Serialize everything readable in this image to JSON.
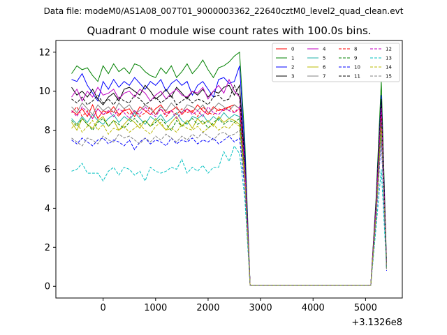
{
  "suptitle": "Data file: modeM0/AS1A08_007T01_9000003362_22640cztM0_level2_quad_clean.evt",
  "chart_data": {
    "type": "line",
    "title": "Quadrant 0 module wise count rates with 100.0s bins.",
    "xlabel": "",
    "ylabel": "",
    "x_offset_label": "+3.1326e8",
    "xlim": [
      -900,
      5700
    ],
    "ylim": [
      -0.6,
      12.6
    ],
    "xticks": [
      0,
      1000,
      2000,
      3000,
      4000,
      5000
    ],
    "yticks": [
      0,
      2,
      4,
      6,
      8,
      10,
      12
    ],
    "grid": false,
    "legend_position": "top-right",
    "x": [
      -600,
      -500,
      -400,
      -300,
      -200,
      -100,
      0,
      100,
      200,
      300,
      400,
      500,
      600,
      700,
      800,
      900,
      1000,
      1100,
      1200,
      1300,
      1400,
      1500,
      1600,
      1700,
      1800,
      1900,
      2000,
      2100,
      2200,
      2300,
      2400,
      2500,
      2600,
      2700,
      2800,
      2900,
      3000,
      3100,
      3200,
      3300,
      3400,
      3500,
      3600,
      3700,
      3800,
      3900,
      4000,
      4100,
      4200,
      4300,
      4400,
      4500,
      4600,
      4700,
      4800,
      4900,
      5000,
      5100,
      5200,
      5300,
      5400
    ],
    "series": [
      {
        "name": "0",
        "color": "#ff0000",
        "style": "solid",
        "values": [
          9.0,
          8.8,
          9.1,
          8.7,
          9.3,
          8.6,
          9.0,
          8.9,
          9.2,
          8.8,
          9.0,
          9.1,
          8.7,
          9.2,
          9.0,
          8.8,
          9.1,
          9.3,
          8.9,
          9.0,
          9.2,
          8.8,
          9.1,
          8.9,
          9.3,
          9.0,
          8.8,
          9.2,
          9.0,
          9.1,
          9.2,
          9.3,
          9.1,
          6.0,
          0.05,
          0.05,
          0.05,
          0.05,
          0.05,
          0.05,
          0.05,
          0.05,
          0.05,
          0.05,
          0.05,
          0.05,
          0.05,
          0.05,
          0.05,
          0.05,
          0.05,
          0.05,
          0.05,
          0.05,
          0.05,
          0.05,
          0.05,
          0.05,
          4.0,
          8.5,
          1.0
        ]
      },
      {
        "name": "1",
        "color": "#008000",
        "style": "solid",
        "values": [
          10.9,
          11.3,
          11.1,
          11.2,
          10.8,
          10.5,
          11.3,
          10.9,
          11.4,
          11.0,
          11.2,
          10.9,
          11.4,
          11.3,
          11.0,
          10.8,
          10.7,
          11.2,
          10.9,
          11.3,
          10.7,
          11.0,
          11.4,
          10.9,
          11.2,
          11.6,
          11.1,
          10.7,
          11.2,
          11.3,
          11.5,
          11.8,
          12.0,
          7.5,
          0.05,
          0.05,
          0.05,
          0.05,
          0.05,
          0.05,
          0.05,
          0.05,
          0.05,
          0.05,
          0.05,
          0.05,
          0.05,
          0.05,
          0.05,
          0.05,
          0.05,
          0.05,
          0.05,
          0.05,
          0.05,
          0.05,
          0.05,
          0.05,
          4.5,
          10.5,
          1.2
        ]
      },
      {
        "name": "2",
        "color": "#0000ff",
        "style": "solid",
        "values": [
          10.6,
          10.5,
          10.9,
          10.3,
          9.9,
          9.5,
          10.5,
          10.1,
          10.6,
          10.2,
          10.5,
          10.3,
          10.7,
          10.4,
          10.1,
          10.5,
          10.3,
          10.6,
          10.0,
          10.4,
          10.6,
          10.3,
          10.5,
          9.8,
          10.3,
          10.5,
          10.1,
          9.7,
          10.6,
          10.7,
          10.4,
          10.5,
          11.3,
          7.0,
          0.05,
          0.05,
          0.05,
          0.05,
          0.05,
          0.05,
          0.05,
          0.05,
          0.05,
          0.05,
          0.05,
          0.05,
          0.05,
          0.05,
          0.05,
          0.05,
          0.05,
          0.05,
          0.05,
          0.05,
          0.05,
          0.05,
          0.05,
          0.05,
          4.3,
          9.8,
          1.1
        ]
      },
      {
        "name": "3",
        "color": "#000000",
        "style": "solid",
        "values": [
          10.2,
          9.8,
          10.0,
          9.7,
          10.1,
          9.6,
          9.3,
          9.7,
          9.9,
          9.5,
          10.1,
          10.2,
          10.0,
          9.8,
          10.3,
          10.0,
          9.6,
          9.8,
          10.1,
          9.7,
          10.2,
          9.9,
          9.6,
          10.0,
          9.8,
          10.1,
          9.7,
          10.0,
          9.9,
          10.2,
          10.3,
          9.8,
          10.3,
          6.5,
          0.05,
          0.05,
          0.05,
          0.05,
          0.05,
          0.05,
          0.05,
          0.05,
          0.05,
          0.05,
          0.05,
          0.05,
          0.05,
          0.05,
          0.05,
          0.05,
          0.05,
          0.05,
          0.05,
          0.05,
          0.05,
          0.05,
          0.05,
          0.05,
          4.2,
          9.5,
          1.0
        ]
      },
      {
        "name": "4",
        "color": "#c000c0",
        "style": "solid",
        "values": [
          9.7,
          10.1,
          9.5,
          10.0,
          9.7,
          10.2,
          9.8,
          9.9,
          10.1,
          9.6,
          9.9,
          10.0,
          9.7,
          10.1,
          9.9,
          9.5,
          9.8,
          10.0,
          9.6,
          9.9,
          10.1,
          9.8,
          9.7,
          10.0,
          9.9,
          10.2,
          9.6,
          10.0,
          10.3,
          9.9,
          10.6,
          10.0,
          9.7,
          6.3,
          0.05,
          0.05,
          0.05,
          0.05,
          0.05,
          0.05,
          0.05,
          0.05,
          0.05,
          0.05,
          0.05,
          0.05,
          0.05,
          0.05,
          0.05,
          0.05,
          0.05,
          0.05,
          0.05,
          0.05,
          0.05,
          0.05,
          0.05,
          0.05,
          4.1,
          9.3,
          1.0
        ]
      },
      {
        "name": "5",
        "color": "#20b2aa",
        "style": "solid",
        "values": [
          8.6,
          8.3,
          8.7,
          8.4,
          8.8,
          8.5,
          8.3,
          8.6,
          8.8,
          8.4,
          8.7,
          8.5,
          8.9,
          8.6,
          8.3,
          8.7,
          8.5,
          8.8,
          8.4,
          8.6,
          8.9,
          8.5,
          8.3,
          8.7,
          8.6,
          8.8,
          8.4,
          8.7,
          8.5,
          8.9,
          8.6,
          8.8,
          8.7,
          5.8,
          0.05,
          0.05,
          0.05,
          0.05,
          0.05,
          0.05,
          0.05,
          0.05,
          0.05,
          0.05,
          0.05,
          0.05,
          0.05,
          0.05,
          0.05,
          0.05,
          0.05,
          0.05,
          0.05,
          0.05,
          0.05,
          0.05,
          0.05,
          0.05,
          3.8,
          8.7,
          0.9
        ]
      },
      {
        "name": "6",
        "color": "#b8b800",
        "style": "solid",
        "values": [
          8.4,
          8.0,
          8.6,
          8.3,
          8.1,
          8.5,
          8.7,
          8.2,
          8.5,
          8.0,
          8.3,
          8.6,
          8.4,
          8.1,
          8.5,
          8.2,
          8.6,
          8.3,
          8.0,
          8.4,
          8.7,
          8.2,
          8.5,
          8.1,
          8.6,
          8.3,
          8.5,
          8.2,
          8.7,
          8.4,
          8.6,
          8.5,
          8.3,
          5.6,
          0.05,
          0.05,
          0.05,
          0.05,
          0.05,
          0.05,
          0.05,
          0.05,
          0.05,
          0.05,
          0.05,
          0.05,
          0.05,
          0.05,
          0.05,
          0.05,
          0.05,
          0.05,
          0.05,
          0.05,
          0.05,
          0.05,
          0.05,
          0.05,
          3.7,
          8.4,
          0.9
        ]
      },
      {
        "name": "7",
        "color": "#808080",
        "style": "solid",
        "values": [
          9.2,
          8.9,
          9.4,
          9.1,
          8.8,
          9.3,
          9.0,
          9.2,
          8.9,
          9.4,
          9.1,
          9.3,
          8.9,
          9.0,
          9.3,
          9.1,
          8.8,
          9.2,
          9.0,
          9.4,
          9.1,
          8.9,
          9.3,
          9.2,
          9.0,
          9.3,
          8.9,
          9.1,
          9.4,
          9.2,
          9.0,
          9.3,
          9.1,
          6.1,
          0.05,
          0.05,
          0.05,
          0.05,
          0.05,
          0.05,
          0.05,
          0.05,
          0.05,
          0.05,
          0.05,
          0.05,
          0.05,
          0.05,
          0.05,
          0.05,
          0.05,
          0.05,
          0.05,
          0.05,
          0.05,
          0.05,
          0.05,
          0.05,
          4.0,
          9.0,
          1.0
        ]
      },
      {
        "name": "8",
        "color": "#ff0000",
        "style": "dashed",
        "values": [
          8.9,
          9.2,
          8.7,
          9.0,
          8.6,
          9.1,
          8.8,
          8.9,
          9.0,
          8.7,
          9.1,
          8.8,
          9.0,
          8.7,
          8.9,
          9.2,
          8.8,
          9.1,
          8.7,
          9.0,
          8.8,
          9.1,
          8.9,
          9.0,
          8.7,
          9.2,
          8.9,
          8.8,
          9.1,
          9.0,
          9.2,
          8.9,
          9.1,
          6.0,
          0.05,
          0.05,
          0.05,
          0.05,
          0.05,
          0.05,
          0.05,
          0.05,
          0.05,
          0.05,
          0.05,
          0.05,
          0.05,
          0.05,
          0.05,
          0.05,
          0.05,
          0.05,
          0.05,
          0.05,
          0.05,
          0.05,
          0.05,
          0.05,
          3.9,
          8.8,
          1.0
        ]
      },
      {
        "name": "9",
        "color": "#008000",
        "style": "dashed",
        "values": [
          8.5,
          8.2,
          8.6,
          8.3,
          8.0,
          8.4,
          8.6,
          8.2,
          8.5,
          8.3,
          8.1,
          8.4,
          8.6,
          8.3,
          8.5,
          8.2,
          8.4,
          8.6,
          8.3,
          8.0,
          8.5,
          8.2,
          8.4,
          8.6,
          8.3,
          8.5,
          8.1,
          8.4,
          8.6,
          8.3,
          8.5,
          8.4,
          8.6,
          5.7,
          0.05,
          0.05,
          0.05,
          0.05,
          0.05,
          0.05,
          0.05,
          0.05,
          0.05,
          0.05,
          0.05,
          0.05,
          0.05,
          0.05,
          0.05,
          0.05,
          0.05,
          0.05,
          0.05,
          0.05,
          0.05,
          0.05,
          0.05,
          0.05,
          3.8,
          8.5,
          0.9
        ]
      },
      {
        "name": "10",
        "color": "#0000ff",
        "style": "dashed",
        "values": [
          7.5,
          7.3,
          7.6,
          7.4,
          7.2,
          7.5,
          7.6,
          7.3,
          7.5,
          7.4,
          7.2,
          7.5,
          7.0,
          7.4,
          7.6,
          7.3,
          7.5,
          7.4,
          7.2,
          7.6,
          7.3,
          7.5,
          7.4,
          7.6,
          7.3,
          7.5,
          7.4,
          7.6,
          7.3,
          7.5,
          7.7,
          7.4,
          7.6,
          5.0,
          0.05,
          0.05,
          0.05,
          0.05,
          0.05,
          0.05,
          0.05,
          0.05,
          0.05,
          0.05,
          0.05,
          0.05,
          0.05,
          0.05,
          0.05,
          0.05,
          0.05,
          0.05,
          0.05,
          0.05,
          0.05,
          0.05,
          0.05,
          0.05,
          3.3,
          7.6,
          0.8
        ]
      },
      {
        "name": "11",
        "color": "#000000",
        "style": "dashed",
        "values": [
          9.6,
          9.4,
          9.7,
          9.3,
          9.5,
          9.8,
          9.4,
          9.6,
          9.3,
          9.7,
          9.5,
          9.4,
          9.8,
          9.6,
          9.3,
          9.5,
          9.7,
          9.4,
          9.6,
          9.8,
          9.3,
          9.5,
          9.7,
          9.4,
          9.6,
          9.5,
          9.3,
          9.7,
          9.8,
          9.5,
          9.6,
          10.3,
          9.7,
          6.4,
          0.05,
          0.05,
          0.05,
          0.05,
          0.05,
          0.05,
          0.05,
          0.05,
          0.05,
          0.05,
          0.05,
          0.05,
          0.05,
          0.05,
          0.05,
          0.05,
          0.05,
          0.05,
          0.05,
          0.05,
          0.05,
          0.05,
          0.05,
          0.05,
          4.2,
          9.6,
          1.0
        ]
      },
      {
        "name": "12",
        "color": "#c000c0",
        "style": "dashed",
        "values": [
          9.0,
          8.7,
          9.2,
          8.9,
          8.6,
          9.1,
          8.8,
          9.0,
          8.7,
          9.1,
          8.9,
          8.6,
          9.0,
          8.8,
          9.2,
          8.9,
          8.7,
          9.1,
          8.8,
          9.0,
          8.6,
          8.9,
          9.1,
          8.8,
          9.0,
          8.7,
          9.2,
          8.9,
          8.8,
          9.1,
          9.0,
          8.9,
          9.2,
          6.1,
          0.05,
          0.05,
          0.05,
          0.05,
          0.05,
          0.05,
          0.05,
          0.05,
          0.05,
          0.05,
          0.05,
          0.05,
          0.05,
          0.05,
          0.05,
          0.05,
          0.05,
          0.05,
          0.05,
          0.05,
          0.05,
          0.05,
          0.05,
          0.05,
          4.0,
          9.1,
          1.0
        ]
      },
      {
        "name": "13",
        "color": "#00c0c0",
        "style": "dashed",
        "values": [
          5.9,
          6.0,
          6.3,
          5.8,
          5.8,
          5.8,
          5.4,
          5.9,
          6.1,
          5.7,
          6.1,
          6.0,
          5.7,
          5.9,
          5.4,
          6.1,
          5.9,
          5.8,
          5.9,
          6.1,
          6.0,
          6.5,
          5.8,
          6.1,
          5.9,
          6.2,
          5.8,
          6.1,
          6.1,
          6.9,
          6.4,
          7.2,
          6.8,
          4.5,
          0.05,
          0.05,
          0.05,
          0.05,
          0.05,
          0.05,
          0.05,
          0.05,
          0.05,
          0.05,
          0.05,
          0.05,
          0.05,
          0.05,
          0.05,
          0.05,
          0.05,
          0.05,
          0.05,
          0.05,
          0.05,
          0.05,
          0.05,
          0.05,
          3.0,
          6.0,
          0.9
        ]
      },
      {
        "name": "14",
        "color": "#b8b800",
        "style": "dashed",
        "values": [
          8.1,
          8.4,
          7.9,
          8.2,
          8.5,
          8.0,
          8.3,
          7.8,
          8.1,
          8.0,
          8.2,
          7.9,
          8.1,
          8.3,
          8.0,
          7.8,
          8.2,
          8.4,
          8.0,
          8.1,
          7.9,
          8.3,
          8.1,
          8.0,
          8.2,
          7.9,
          8.1,
          8.3,
          8.0,
          8.2,
          8.1,
          8.4,
          8.2,
          5.5,
          0.05,
          0.05,
          0.05,
          0.05,
          0.05,
          0.05,
          0.05,
          0.05,
          0.05,
          0.05,
          0.05,
          0.05,
          0.05,
          0.05,
          0.05,
          0.05,
          0.05,
          0.05,
          0.05,
          0.05,
          0.05,
          0.05,
          0.05,
          0.05,
          3.6,
          8.1,
          0.9
        ]
      },
      {
        "name": "15",
        "color": "#808080",
        "style": "dashed",
        "values": [
          7.6,
          7.4,
          7.2,
          7.6,
          7.5,
          7.3,
          7.7,
          7.5,
          7.4,
          7.8,
          7.6,
          7.7,
          7.5,
          7.3,
          7.6,
          7.4,
          7.7,
          7.5,
          7.8,
          7.6,
          7.4,
          7.7,
          7.5,
          7.8,
          7.6,
          7.9,
          7.7,
          7.5,
          7.8,
          7.9,
          7.7,
          7.8,
          8.0,
          5.2,
          0.05,
          0.05,
          0.05,
          0.05,
          0.05,
          0.05,
          0.05,
          0.05,
          0.05,
          0.05,
          0.05,
          0.05,
          0.05,
          0.05,
          0.05,
          0.05,
          0.05,
          0.05,
          0.05,
          0.05,
          0.05,
          0.05,
          0.05,
          0.05,
          3.4,
          7.8,
          0.9
        ]
      }
    ]
  }
}
